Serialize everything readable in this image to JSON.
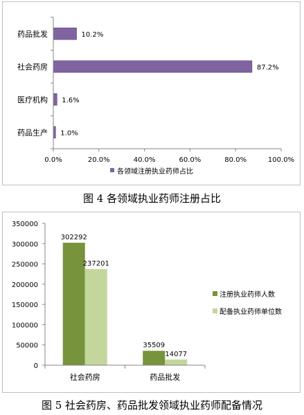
{
  "chart_data": [
    {
      "type": "bar",
      "orientation": "horizontal",
      "categories": [
        "药品批发",
        "社会药房",
        "医疗机构",
        "药品生产"
      ],
      "values": [
        10.2,
        87.2,
        1.6,
        1.0
      ],
      "value_labels": [
        "10.2%",
        "87.2%",
        "1.6%",
        "1.0%"
      ],
      "series": [
        {
          "name": "各领域注册执业药师占比",
          "values": [
            10.2,
            87.2,
            1.6,
            1.0
          ],
          "color": "#8064a2"
        }
      ],
      "xlim": [
        0,
        100
      ],
      "x_ticks": [
        0,
        20,
        40,
        60,
        80,
        100
      ],
      "x_tick_labels": [
        "0.0%",
        "20.0%",
        "40.0%",
        "60.0%",
        "80.0%",
        "100.0%"
      ],
      "grid": false,
      "legend_position": "bottom",
      "caption": "图 4 各领域执业药师注册占比"
    },
    {
      "type": "bar",
      "categories": [
        "社会药房",
        "药品批发"
      ],
      "series": [
        {
          "name": "注册执业药师人数",
          "values": [
            302292,
            35509
          ],
          "color": "#77933c"
        },
        {
          "name": "配备执业药师单位数",
          "values": [
            237201,
            14077
          ],
          "color": "#c3d69b"
        }
      ],
      "value_labels": [
        [
          "302292",
          "35509"
        ],
        [
          "237201",
          "14077"
        ]
      ],
      "ylim": [
        0,
        350000
      ],
      "y_ticks": [
        0,
        50000,
        100000,
        150000,
        200000,
        250000,
        300000,
        350000
      ],
      "y_tick_labels": [
        "0",
        "50000",
        "100000",
        "150000",
        "200000",
        "250000",
        "300000",
        "350000"
      ],
      "grid": false,
      "legend_position": "right",
      "caption": "图 5 社会药房、药品批发领域执业药师配备情况"
    }
  ]
}
